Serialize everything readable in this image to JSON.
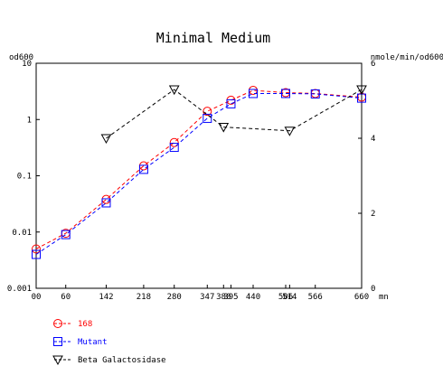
{
  "chart_data": {
    "type": "line",
    "title": "Minimal Medium",
    "xlabel": "mn",
    "ylabel": "od600",
    "y2label": "nmole/min/od600",
    "yscale": "log",
    "ylim": [
      0.001,
      10
    ],
    "y2lim": [
      0,
      6
    ],
    "xlim": [
      0,
      660
    ],
    "xticks": [
      0,
      60,
      142,
      218,
      280,
      347,
      380,
      395,
      440,
      506,
      514,
      566,
      660
    ],
    "xtick_labels": [
      "00",
      "60",
      "142",
      "218",
      "280",
      "347",
      "380",
      "395",
      "440",
      "506",
      "514",
      "566",
      "660"
    ],
    "yticks": [
      0.001,
      0.01,
      0.1,
      1,
      10
    ],
    "ytick_labels": [
      "0.001",
      "0.01",
      "0.1",
      "1",
      "10"
    ],
    "y2ticks": [
      0,
      2,
      4,
      6
    ],
    "y2tick_labels": [
      "0",
      "2",
      "4",
      "6"
    ],
    "grid": false,
    "legend_position": "bottom-left",
    "series": [
      {
        "name": "168",
        "axis": "left",
        "color": "#ff0000",
        "marker": "circle",
        "x": [
          0,
          60,
          142,
          218,
          280,
          347,
          395,
          440,
          506,
          566,
          660
        ],
        "y": [
          0.005,
          0.0095,
          0.038,
          0.15,
          0.39,
          1.4,
          2.2,
          3.3,
          3.0,
          2.9,
          2.5
        ]
      },
      {
        "name": "Mutant",
        "axis": "left",
        "color": "#0000ff",
        "marker": "square",
        "x": [
          0,
          60,
          142,
          218,
          280,
          347,
          395,
          440,
          506,
          566,
          660
        ],
        "y": [
          0.004,
          0.009,
          0.033,
          0.13,
          0.32,
          1.05,
          1.9,
          2.9,
          2.9,
          2.85,
          2.4
        ]
      },
      {
        "name": "Beta Galactosidase",
        "axis": "right",
        "color": "#000000",
        "marker": "triangle-down",
        "x": [
          142,
          280,
          380,
          514,
          660
        ],
        "y": [
          4.0,
          5.3,
          4.3,
          4.2,
          5.3
        ]
      }
    ]
  }
}
